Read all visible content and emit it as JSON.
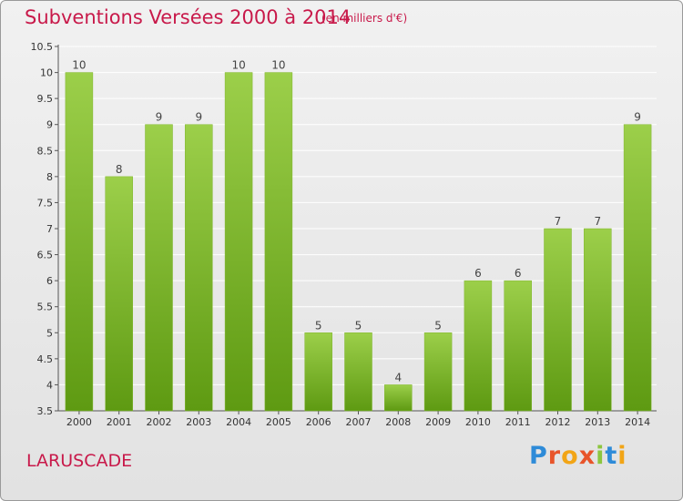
{
  "header": {
    "title": "Subventions Versées 2000 à 2014",
    "unit": "(en milliers d'€)"
  },
  "footer": {
    "place": "LARUSCADE",
    "logo": [
      "P",
      "r",
      "o",
      "x",
      "i",
      "t",
      "i"
    ]
  },
  "colors": {
    "accent": "#c8194a",
    "bar_top": "#9ccf4a",
    "bar_bottom": "#5e9a12",
    "grid": "#ffffff"
  },
  "chart_data": {
    "type": "bar",
    "title": "Subventions Versées 2000 à 2014",
    "subtitle": "(en milliers d'€)",
    "categories": [
      "2000",
      "2001",
      "2002",
      "2003",
      "2004",
      "2005",
      "2006",
      "2007",
      "2008",
      "2009",
      "2010",
      "2011",
      "2012",
      "2013",
      "2014"
    ],
    "values": [
      10,
      8,
      9,
      9,
      10,
      10,
      5,
      5,
      4,
      5,
      6,
      6,
      7,
      7,
      9
    ],
    "ylim": [
      3.5,
      10.5
    ],
    "yticks": [
      "3.5",
      "4",
      "4.5",
      "5",
      "5.5",
      "6",
      "6.5",
      "7",
      "7.5",
      "8",
      "8.5",
      "9",
      "9.5",
      "10",
      "10.5"
    ],
    "grid": true,
    "xlabel": "",
    "ylabel": ""
  }
}
